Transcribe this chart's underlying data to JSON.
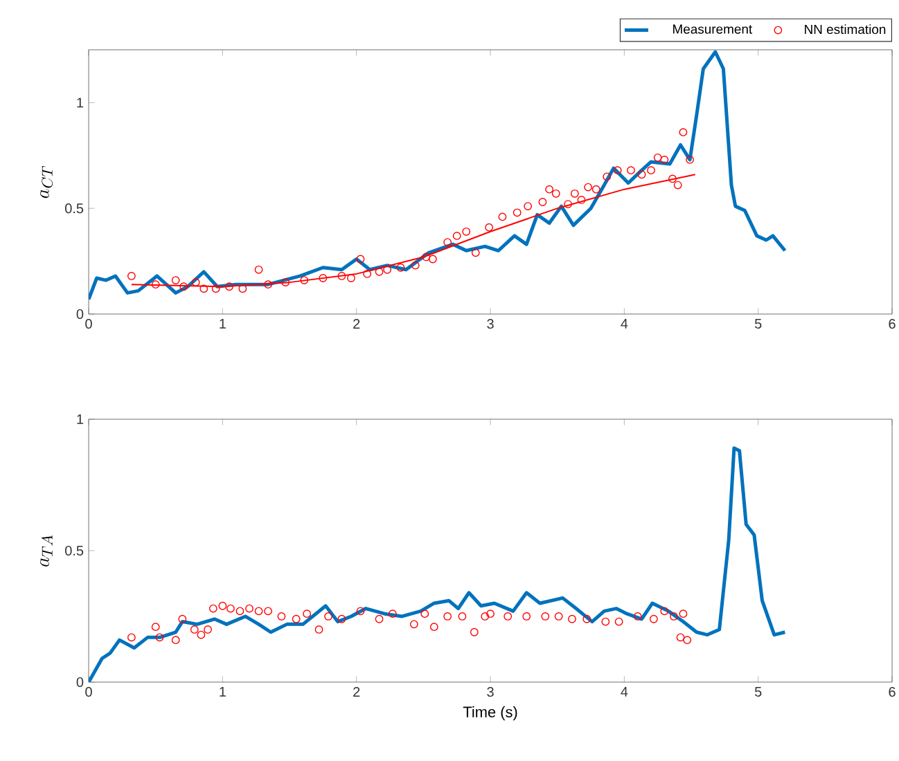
{
  "chart_data": [
    {
      "type": "line",
      "ylabel": "a_{CT}",
      "xlim": [
        0,
        6
      ],
      "ylim": [
        0,
        1.25
      ],
      "xticks": [
        0,
        1,
        2,
        3,
        4,
        5,
        6
      ],
      "yticks": [
        0,
        0.5,
        1
      ],
      "legend": "top right",
      "series": [
        {
          "name": "Measurement",
          "color": "#0072bd",
          "marker": "none",
          "line_style": "solid",
          "x": [
            0,
            0.06,
            0.13,
            0.2,
            0.29,
            0.37,
            0.51,
            0.65,
            0.74,
            0.86,
            0.96,
            1.1,
            1.34,
            1.58,
            1.75,
            1.89,
            2.0,
            2.1,
            2.23,
            2.37,
            2.54,
            2.72,
            2.82,
            2.96,
            3.06,
            3.18,
            3.27,
            3.35,
            3.44,
            3.53,
            3.62,
            3.75,
            3.85,
            3.92,
            4.03,
            4.13,
            4.2,
            4.34,
            4.42,
            4.49,
            4.54,
            4.59,
            4.68,
            4.74,
            4.8,
            4.83,
            4.9,
            4.99,
            5.06,
            5.11,
            5.2
          ],
          "values": [
            0.07,
            0.17,
            0.16,
            0.18,
            0.1,
            0.11,
            0.18,
            0.1,
            0.13,
            0.2,
            0.13,
            0.14,
            0.14,
            0.18,
            0.22,
            0.21,
            0.26,
            0.21,
            0.23,
            0.21,
            0.29,
            0.33,
            0.3,
            0.32,
            0.3,
            0.37,
            0.33,
            0.47,
            0.43,
            0.51,
            0.42,
            0.5,
            0.61,
            0.69,
            0.62,
            0.68,
            0.72,
            0.71,
            0.8,
            0.73,
            0.94,
            1.16,
            1.24,
            1.16,
            0.61,
            0.51,
            0.49,
            0.37,
            0.35,
            0.37,
            0.3
          ]
        },
        {
          "name": "NN estimation",
          "type": "scatter",
          "color": "#ff0000",
          "marker": "circle",
          "x": [
            0.32,
            0.5,
            0.65,
            0.71,
            0.8,
            0.86,
            0.95,
            1.05,
            1.15,
            1.27,
            1.34,
            1.47,
            1.61,
            1.75,
            1.89,
            1.96,
            2.03,
            2.08,
            2.17,
            2.23,
            2.33,
            2.44,
            2.52,
            2.57,
            2.68,
            2.75,
            2.82,
            2.89,
            2.99,
            3.09,
            3.2,
            3.28,
            3.39,
            3.44,
            3.49,
            3.58,
            3.63,
            3.68,
            3.73,
            3.79,
            3.87,
            3.95,
            4.05,
            4.13,
            4.2,
            4.25,
            4.3,
            4.36,
            4.4,
            4.44,
            4.49
          ],
          "values": [
            0.18,
            0.14,
            0.16,
            0.13,
            0.15,
            0.12,
            0.12,
            0.13,
            0.12,
            0.21,
            0.14,
            0.15,
            0.16,
            0.17,
            0.18,
            0.17,
            0.26,
            0.19,
            0.2,
            0.21,
            0.22,
            0.23,
            0.27,
            0.26,
            0.34,
            0.37,
            0.39,
            0.29,
            0.41,
            0.46,
            0.48,
            0.51,
            0.53,
            0.59,
            0.57,
            0.52,
            0.57,
            0.54,
            0.6,
            0.59,
            0.65,
            0.68,
            0.68,
            0.66,
            0.68,
            0.74,
            0.73,
            0.64,
            0.61,
            0.86,
            0.73
          ]
        },
        {
          "color": "#ff0000",
          "marker": "none",
          "line_style": "solid",
          "x": [
            0.32,
            1,
            1.5,
            2,
            2.5,
            3,
            3.5,
            4,
            4.53
          ],
          "values": [
            0.14,
            0.13,
            0.15,
            0.19,
            0.27,
            0.39,
            0.5,
            0.59,
            0.66
          ]
        }
      ]
    },
    {
      "type": "line",
      "ylabel": "a_{TA}",
      "xlabel": "Time (s)",
      "xlim": [
        0,
        6
      ],
      "ylim": [
        0,
        1
      ],
      "xticks": [
        0,
        1,
        2,
        3,
        4,
        5,
        6
      ],
      "yticks": [
        0,
        0.5,
        1
      ],
      "series": [
        {
          "color": "#0072bd",
          "marker": "none",
          "line_style": "solid",
          "x": [
            0,
            0.1,
            0.16,
            0.23,
            0.34,
            0.44,
            0.53,
            0.65,
            0.7,
            0.81,
            0.94,
            1.03,
            1.17,
            1.27,
            1.36,
            1.48,
            1.6,
            1.77,
            1.86,
            1.96,
            2.07,
            2.21,
            2.34,
            2.48,
            2.58,
            2.69,
            2.76,
            2.84,
            2.93,
            3.03,
            3.17,
            3.27,
            3.37,
            3.54,
            3.64,
            3.76,
            3.85,
            3.94,
            4.02,
            4.13,
            4.21,
            4.33,
            4.44,
            4.54,
            4.62,
            4.71,
            4.78,
            4.82,
            4.86,
            4.91,
            4.97,
            5.03,
            5.12,
            5.2
          ],
          "values": [
            0.0,
            0.09,
            0.11,
            0.16,
            0.13,
            0.17,
            0.17,
            0.19,
            0.23,
            0.22,
            0.24,
            0.22,
            0.25,
            0.22,
            0.19,
            0.22,
            0.22,
            0.29,
            0.23,
            0.25,
            0.28,
            0.26,
            0.25,
            0.27,
            0.3,
            0.31,
            0.28,
            0.34,
            0.29,
            0.3,
            0.27,
            0.34,
            0.3,
            0.32,
            0.28,
            0.23,
            0.27,
            0.28,
            0.26,
            0.24,
            0.3,
            0.27,
            0.23,
            0.19,
            0.18,
            0.2,
            0.54,
            0.89,
            0.88,
            0.6,
            0.56,
            0.31,
            0.18,
            0.19
          ]
        },
        {
          "type": "scatter",
          "color": "#ff0000",
          "marker": "circle",
          "x": [
            0.32,
            0.5,
            0.53,
            0.65,
            0.7,
            0.79,
            0.84,
            0.89,
            0.93,
            1.0,
            1.06,
            1.13,
            1.2,
            1.27,
            1.34,
            1.44,
            1.55,
            1.63,
            1.72,
            1.79,
            1.89,
            2.03,
            2.17,
            2.27,
            2.43,
            2.51,
            2.58,
            2.68,
            2.79,
            2.88,
            2.96,
            3.0,
            3.13,
            3.27,
            3.41,
            3.51,
            3.61,
            3.72,
            3.86,
            3.96,
            4.1,
            4.22,
            4.3,
            4.37,
            4.42,
            4.44,
            4.47
          ],
          "values": [
            0.17,
            0.21,
            0.17,
            0.16,
            0.24,
            0.2,
            0.18,
            0.2,
            0.28,
            0.29,
            0.28,
            0.27,
            0.28,
            0.27,
            0.27,
            0.25,
            0.24,
            0.26,
            0.2,
            0.25,
            0.24,
            0.27,
            0.24,
            0.26,
            0.22,
            0.26,
            0.21,
            0.25,
            0.25,
            0.19,
            0.25,
            0.26,
            0.25,
            0.25,
            0.25,
            0.25,
            0.24,
            0.24,
            0.23,
            0.23,
            0.25,
            0.24,
            0.27,
            0.25,
            0.17,
            0.26,
            0.16
          ]
        }
      ]
    }
  ]
}
